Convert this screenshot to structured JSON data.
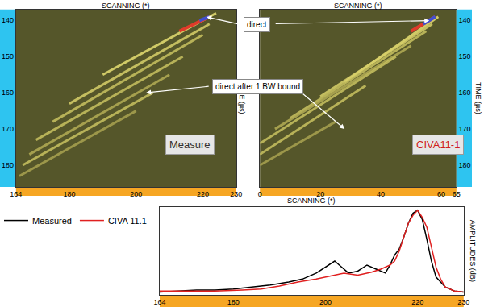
{
  "chart_data": [
    {
      "type": "line",
      "title": "Measure",
      "xlabel": "SCANNING (*)",
      "ylabel": "TIME (µs)",
      "xlim": [
        164,
        230
      ],
      "xticks": [
        164,
        180,
        200,
        220,
        230
      ],
      "ylim": [
        137,
        186
      ],
      "yticks": [
        140,
        150,
        160,
        170,
        180
      ],
      "grid": false,
      "annotations": [
        "direct",
        "direct after 1 BW bound"
      ],
      "series": [
        {
          "color": "#e6de72",
          "x": [
            190,
            224
          ],
          "values": [
            155,
            138
          ]
        },
        {
          "color": "#d8d06a",
          "x": [
            180,
            222
          ],
          "values": [
            163,
            141
          ]
        },
        {
          "color": "#c9c260",
          "x": [
            175,
            220
          ],
          "values": [
            168,
            144
          ]
        },
        {
          "color": "#c9c260",
          "x": [
            170,
            214
          ],
          "values": [
            173,
            150
          ]
        },
        {
          "color": "#b4ad55",
          "x": [
            168,
            210
          ],
          "values": [
            177,
            155
          ]
        },
        {
          "color": "#c9c260",
          "x": [
            166,
            205
          ],
          "values": [
            180,
            160
          ]
        },
        {
          "color": "#a9a250",
          "x": [
            165,
            200
          ],
          "values": [
            183,
            165
          ]
        },
        {
          "color": "#e03a2a",
          "x": [
            213,
            222
          ],
          "values": [
            143,
            139
          ]
        },
        {
          "color": "#4050d0",
          "x": [
            219,
            222
          ],
          "values": [
            140,
            139
          ]
        }
      ]
    },
    {
      "type": "line",
      "title": "CIVA11-1",
      "xlabel": "SCANNING (*)",
      "ylabel": "TIME (µs)",
      "xlim": [
        0,
        65
      ],
      "xticks": [
        0,
        20,
        40,
        60,
        65
      ],
      "ylim": [
        137,
        186
      ],
      "yticks": [
        140,
        150,
        160,
        170,
        180
      ],
      "grid": false,
      "series": [
        {
          "color": "#e6de72",
          "x": [
            28,
            59
          ],
          "values": [
            157,
            139
          ]
        },
        {
          "color": "#d8d06a",
          "x": [
            20,
            57
          ],
          "values": [
            161,
            141
          ]
        },
        {
          "color": "#c9c260",
          "x": [
            10,
            55
          ],
          "values": [
            167,
            143
          ]
        },
        {
          "color": "#b4ad55",
          "x": [
            5,
            50
          ],
          "values": [
            170,
            147
          ]
        },
        {
          "color": "#c9c260",
          "x": [
            0,
            45
          ],
          "values": [
            174,
            150
          ]
        },
        {
          "color": "#c9c260",
          "x": [
            0,
            35
          ],
          "values": [
            177,
            158
          ]
        },
        {
          "color": "#a9a250",
          "x": [
            0,
            25
          ],
          "values": [
            180,
            168
          ]
        },
        {
          "color": "#e03a2a",
          "x": [
            50,
            58
          ],
          "values": [
            143,
            139
          ]
        },
        {
          "color": "#4050d0",
          "x": [
            54,
            58
          ],
          "values": [
            141,
            139
          ]
        }
      ]
    },
    {
      "type": "line",
      "xlabel": "SCANNING (*)",
      "ylabel": "AMPLITUDES (dB)",
      "xlim": [
        164,
        230
      ],
      "xticks": [
        164,
        180,
        200,
        220,
        230
      ],
      "ylim": [
        -42,
        2
      ],
      "grid": false,
      "tick_labels": "x",
      "legend": "top left",
      "series": [
        {
          "name": "Measured",
          "color": "#000000",
          "x": [
            164,
            168,
            172,
            176,
            180,
            184,
            188,
            192,
            195,
            198,
            200,
            202,
            203,
            205,
            207,
            209,
            211,
            213,
            214,
            215,
            216,
            217,
            218,
            219,
            220,
            221,
            222,
            223,
            224,
            226,
            228,
            230
          ],
          "values": [
            -40.5,
            -40,
            -39.5,
            -39.5,
            -39,
            -38,
            -37,
            -35.5,
            -34,
            -31,
            -28,
            -25,
            -27,
            -31,
            -30,
            -27,
            -29,
            -31,
            -27,
            -22,
            -19,
            -13,
            -6,
            -1,
            0.5,
            -4,
            -14,
            -25,
            -33,
            -38,
            -40,
            -40.5
          ]
        },
        {
          "name": "CIVA 11.1",
          "color": "#e02020",
          "x": [
            164,
            170,
            176,
            182,
            186,
            190,
            194,
            198,
            200,
            204,
            207,
            210,
            212,
            214,
            215,
            216,
            217,
            218,
            219,
            220,
            221,
            222,
            223,
            224,
            225,
            226,
            228,
            230
          ],
          "values": [
            -40,
            -40,
            -40,
            -39.5,
            -39,
            -37.5,
            -35.5,
            -34,
            -33,
            -31,
            -32,
            -30.5,
            -29,
            -27,
            -25,
            -20,
            -13,
            -6,
            -2,
            0.5,
            -3,
            -8,
            -18,
            -28,
            -34,
            -38,
            -40,
            -40.5
          ]
        }
      ]
    }
  ]
}
